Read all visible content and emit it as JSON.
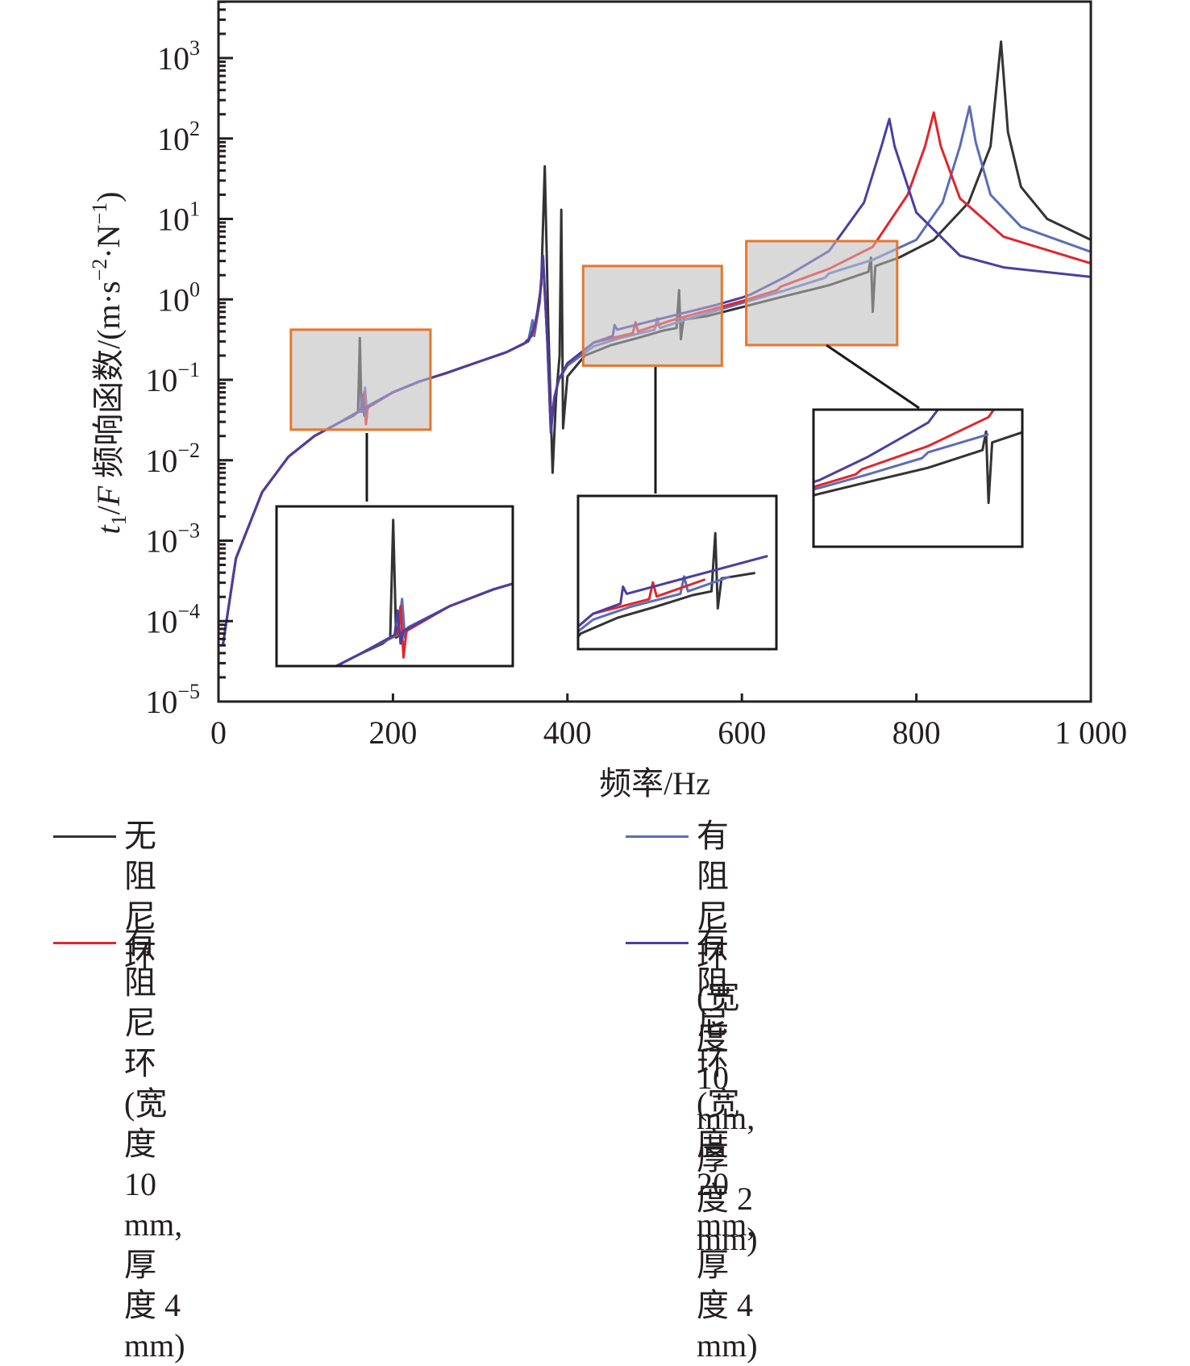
{
  "chart_data": {
    "type": "line",
    "title": "",
    "xlabel": "频率/Hz",
    "ylabel_parts": {
      "var": "t",
      "sub": "1",
      "rest": "/",
      "var2": "F",
      "cn": " 频响函数/(m·s",
      "exp1": "−2",
      "mid": "·N",
      "exp2": "−1",
      "end": ")"
    },
    "ylabel": "t1/F 频响函数/(m·s−2·N−1)",
    "xlim": [
      0,
      1000
    ],
    "ylim_log10": [
      -5,
      3.7
    ],
    "yscale": "log",
    "x_ticks": [
      {
        "value": 0,
        "label": "0"
      },
      {
        "value": 200,
        "label": "200"
      },
      {
        "value": 400,
        "label": "400"
      },
      {
        "value": 600,
        "label": "600"
      },
      {
        "value": 800,
        "label": "800"
      },
      {
        "value": 1000,
        "label": "1 000"
      }
    ],
    "y_ticks": [
      {
        "exp": 3,
        "base": "10",
        "sup": "3"
      },
      {
        "exp": 2,
        "base": "10",
        "sup": "2"
      },
      {
        "exp": 1,
        "base": "10",
        "sup": "1"
      },
      {
        "exp": 0,
        "base": "10",
        "sup": "0"
      },
      {
        "exp": -1,
        "base": "10",
        "sup": "−1"
      },
      {
        "exp": -2,
        "base": "10",
        "sup": "−2"
      },
      {
        "exp": -3,
        "base": "10",
        "sup": "−3"
      },
      {
        "exp": -4,
        "base": "10",
        "sup": "−4"
      },
      {
        "exp": -5,
        "base": "10",
        "sup": "−5"
      }
    ],
    "grid": false,
    "legend_position": "bottom",
    "series": [
      {
        "name": "无阻尼环",
        "color": "#333333",
        "points": [
          [
            5,
            5e-05
          ],
          [
            20,
            0.0006
          ],
          [
            50,
            0.004
          ],
          [
            80,
            0.011
          ],
          [
            110,
            0.02
          ],
          [
            140,
            0.03
          ],
          [
            155,
            0.036
          ],
          [
            160,
            0.04
          ],
          [
            162,
            0.33
          ],
          [
            164,
            0.04
          ],
          [
            170,
            0.046
          ],
          [
            200,
            0.07
          ],
          [
            230,
            0.095
          ],
          [
            260,
            0.12
          ],
          [
            300,
            0.17
          ],
          [
            330,
            0.22
          ],
          [
            350,
            0.28
          ],
          [
            362,
            0.38
          ],
          [
            370,
            1.5
          ],
          [
            374,
            45
          ],
          [
            378,
            0.5
          ],
          [
            383,
            0.007
          ],
          [
            387,
            0.06
          ],
          [
            391,
            0.2
          ],
          [
            393,
            13
          ],
          [
            395,
            0.025
          ],
          [
            400,
            0.11
          ],
          [
            420,
            0.2
          ],
          [
            450,
            0.27
          ],
          [
            480,
            0.33
          ],
          [
            510,
            0.41
          ],
          [
            525,
            0.44
          ],
          [
            528,
            1.3
          ],
          [
            530,
            0.32
          ],
          [
            533,
            0.56
          ],
          [
            560,
            0.62
          ],
          [
            600,
            0.8
          ],
          [
            650,
            1.1
          ],
          [
            700,
            1.5
          ],
          [
            745,
            2.2
          ],
          [
            748,
            3.3
          ],
          [
            750,
            0.7
          ],
          [
            753,
            2.6
          ],
          [
            780,
            3.3
          ],
          [
            820,
            5.5
          ],
          [
            860,
            16
          ],
          [
            885,
            80
          ],
          [
            897,
            1600
          ],
          [
            905,
            120
          ],
          [
            920,
            25
          ],
          [
            950,
            10
          ],
          [
            1000,
            5.5
          ]
        ]
      },
      {
        "name": "有阻尼环 (宽度 10 mm, 厚度 2 mm)",
        "color": "#5b6db8",
        "points": [
          [
            5,
            5e-05
          ],
          [
            20,
            0.0006
          ],
          [
            50,
            0.004
          ],
          [
            80,
            0.011
          ],
          [
            110,
            0.02
          ],
          [
            140,
            0.03
          ],
          [
            165,
            0.042
          ],
          [
            168,
            0.08
          ],
          [
            170,
            0.04
          ],
          [
            172,
            0.048
          ],
          [
            200,
            0.07
          ],
          [
            230,
            0.095
          ],
          [
            260,
            0.12
          ],
          [
            300,
            0.17
          ],
          [
            330,
            0.22
          ],
          [
            355,
            0.3
          ],
          [
            360,
            0.55
          ],
          [
            362,
            0.35
          ],
          [
            368,
            0.9
          ],
          [
            372,
            3.2
          ],
          [
            377,
            0.3
          ],
          [
            381,
            0.025
          ],
          [
            385,
            0.06
          ],
          [
            390,
            0.1
          ],
          [
            400,
            0.15
          ],
          [
            430,
            0.26
          ],
          [
            460,
            0.33
          ],
          [
            500,
            0.42
          ],
          [
            503,
            0.58
          ],
          [
            506,
            0.44
          ],
          [
            540,
            0.58
          ],
          [
            600,
            0.9
          ],
          [
            650,
            1.3
          ],
          [
            695,
            1.85
          ],
          [
            700,
            2.1
          ],
          [
            750,
            3.1
          ],
          [
            800,
            5.5
          ],
          [
            830,
            16
          ],
          [
            850,
            80
          ],
          [
            861,
            250
          ],
          [
            868,
            90
          ],
          [
            885,
            20
          ],
          [
            920,
            8
          ],
          [
            1000,
            3.9
          ]
        ]
      },
      {
        "name": "有阻尼环 (宽度 10 mm, 厚度 4 mm)",
        "color": "#e0262b",
        "points": [
          [
            5,
            5e-05
          ],
          [
            20,
            0.0006
          ],
          [
            50,
            0.004
          ],
          [
            80,
            0.011
          ],
          [
            110,
            0.02
          ],
          [
            140,
            0.03
          ],
          [
            165,
            0.043
          ],
          [
            167,
            0.07
          ],
          [
            169,
            0.028
          ],
          [
            171,
            0.045
          ],
          [
            200,
            0.07
          ],
          [
            230,
            0.095
          ],
          [
            260,
            0.12
          ],
          [
            300,
            0.17
          ],
          [
            330,
            0.22
          ],
          [
            355,
            0.3
          ],
          [
            362,
            0.42
          ],
          [
            368,
            0.9
          ],
          [
            372,
            3.3
          ],
          [
            377,
            0.3
          ],
          [
            381,
            0.025
          ],
          [
            385,
            0.06
          ],
          [
            390,
            0.1
          ],
          [
            400,
            0.16
          ],
          [
            430,
            0.29
          ],
          [
            475,
            0.38
          ],
          [
            478,
            0.52
          ],
          [
            481,
            0.4
          ],
          [
            520,
            0.55
          ],
          [
            600,
            0.95
          ],
          [
            640,
            1.3
          ],
          [
            645,
            1.45
          ],
          [
            700,
            2.4
          ],
          [
            750,
            4.5
          ],
          [
            790,
            20
          ],
          [
            810,
            80
          ],
          [
            820,
            210
          ],
          [
            828,
            80
          ],
          [
            850,
            18
          ],
          [
            900,
            6
          ],
          [
            1000,
            2.8
          ]
        ]
      },
      {
        "name": "有阻尼环 (宽度 20 mm, 厚度 4 mm)",
        "color": "#4b3f9e",
        "points": [
          [
            5,
            5e-05
          ],
          [
            20,
            0.0006
          ],
          [
            50,
            0.004
          ],
          [
            80,
            0.011
          ],
          [
            110,
            0.02
          ],
          [
            140,
            0.03
          ],
          [
            163,
            0.042
          ],
          [
            165,
            0.065
          ],
          [
            167,
            0.036
          ],
          [
            169,
            0.045
          ],
          [
            200,
            0.07
          ],
          [
            230,
            0.095
          ],
          [
            260,
            0.12
          ],
          [
            300,
            0.17
          ],
          [
            330,
            0.22
          ],
          [
            355,
            0.3
          ],
          [
            362,
            0.45
          ],
          [
            368,
            0.95
          ],
          [
            372,
            3.5
          ],
          [
            377,
            0.3
          ],
          [
            381,
            0.022
          ],
          [
            385,
            0.06
          ],
          [
            390,
            0.1
          ],
          [
            400,
            0.16
          ],
          [
            430,
            0.29
          ],
          [
            452,
            0.35
          ],
          [
            454,
            0.48
          ],
          [
            457,
            0.42
          ],
          [
            500,
            0.55
          ],
          [
            570,
            0.85
          ],
          [
            600,
            1.05
          ],
          [
            610,
            1.15
          ],
          [
            650,
            1.9
          ],
          [
            700,
            4
          ],
          [
            740,
            16
          ],
          [
            760,
            80
          ],
          [
            769,
            175
          ],
          [
            775,
            80
          ],
          [
            800,
            12
          ],
          [
            850,
            3.5
          ],
          [
            900,
            2.5
          ],
          [
            1000,
            1.9
          ]
        ]
      }
    ],
    "zoom_boxes": [
      {
        "x": [
          83,
          243
        ],
        "y": [
          0.024,
          0.42
        ]
      },
      {
        "x": [
          418,
          577
        ],
        "y": [
          0.15,
          2.6
        ]
      },
      {
        "x": [
          605,
          778
        ],
        "y": [
          0.27,
          5.3
        ]
      }
    ]
  },
  "insets": [
    {
      "name": "inset-1"
    },
    {
      "name": "inset-2"
    },
    {
      "name": "inset-3"
    }
  ],
  "legend": {
    "items": [
      {
        "label": "无阻尼环",
        "color": "#333333"
      },
      {
        "label": "有阻尼环 (宽度 10 mm,\n厚度 2 mm)",
        "color": "#5b6db8"
      },
      {
        "label": "有阻尼环 (宽度 10 mm,\n厚度 4 mm)",
        "color": "#e0262b"
      },
      {
        "label": "有阻尼环 (宽度 20 mm,\n厚度 4 mm)",
        "color": "#4b3f9e"
      }
    ]
  },
  "colors": {
    "axis": "#231f20",
    "zoom_box_fill": "#d9d9d9",
    "zoom_box_border": "#e6772e"
  }
}
